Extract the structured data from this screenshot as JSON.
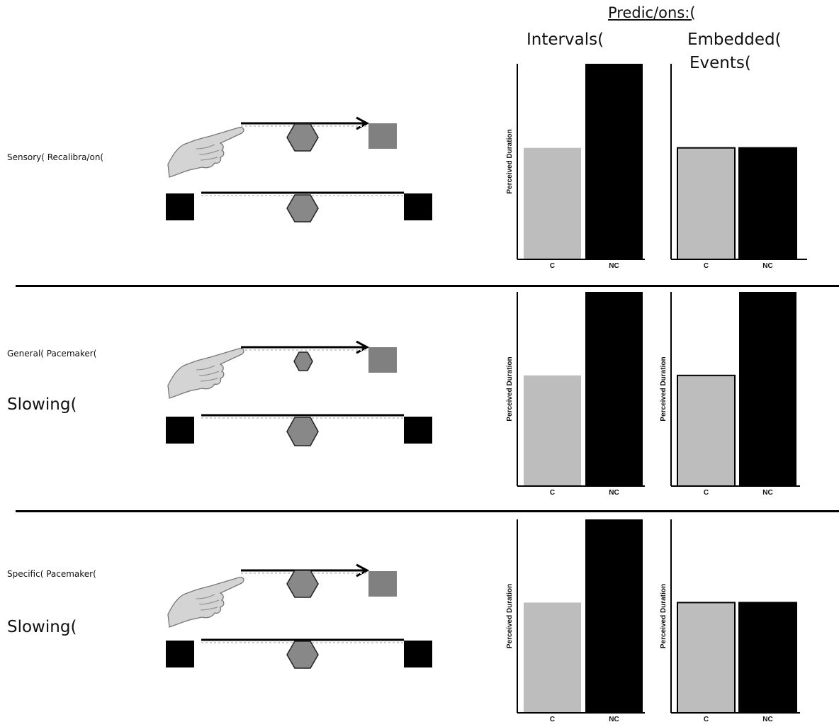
{
  "header": {
    "predictions": "Predic/ons:(",
    "intervals": "Intervals(",
    "embedded": "Embedded(",
    "events": "Events("
  },
  "rows": [
    {
      "label": "Sensory( Recalibra/on(",
      "big_label": ""
    },
    {
      "label": "General( Pacemaker(",
      "big_label": "Slowing("
    },
    {
      "label": "Specific( Pacemaker(",
      "big_label": "Slowing("
    }
  ],
  "chart_data": [
    {
      "type": "bar",
      "row": "Sensory( Recalibra/on(",
      "panel": "Intervals(",
      "categories": [
        "C",
        "NC"
      ],
      "values": [
        0.57,
        1.0
      ],
      "ylabel": "Perceived Duration"
    },
    {
      "type": "bar",
      "row": "Sensory( Recalibra/on(",
      "panel": "Embedded( Events(",
      "categories": [
        "C",
        "NC"
      ],
      "values": [
        0.57,
        0.57
      ],
      "ylabel": ""
    },
    {
      "type": "bar",
      "row": "General( Pacemaker( Slowing(",
      "panel": "Intervals(",
      "categories": [
        "C",
        "NC"
      ],
      "values": [
        0.57,
        1.0
      ],
      "ylabel": "Perceived Duration"
    },
    {
      "type": "bar",
      "row": "General( Pacemaker( Slowing(",
      "panel": "Embedded( Events(",
      "categories": [
        "C",
        "NC"
      ],
      "values": [
        0.57,
        1.0
      ],
      "ylabel": "Perceived Duration"
    },
    {
      "type": "bar",
      "row": "Specific( Pacemaker( Slowing(",
      "panel": "Intervals(",
      "categories": [
        "C",
        "NC"
      ],
      "values": [
        0.57,
        1.0
      ],
      "ylabel": "Perceived Duration"
    },
    {
      "type": "bar",
      "row": "Specific( Pacemaker( Slowing(",
      "panel": "Embedded( Events(",
      "categories": [
        "C",
        "NC"
      ],
      "values": [
        0.57,
        0.57
      ],
      "ylabel": "Perceived Duration"
    }
  ],
  "colors": {
    "C": "#bdbdbd",
    "NC": "#000000"
  },
  "icons": [
    "pointing-hand-icon",
    "hexagon-icon",
    "arrow-icon",
    "gray-square-icon",
    "black-square-icon"
  ]
}
